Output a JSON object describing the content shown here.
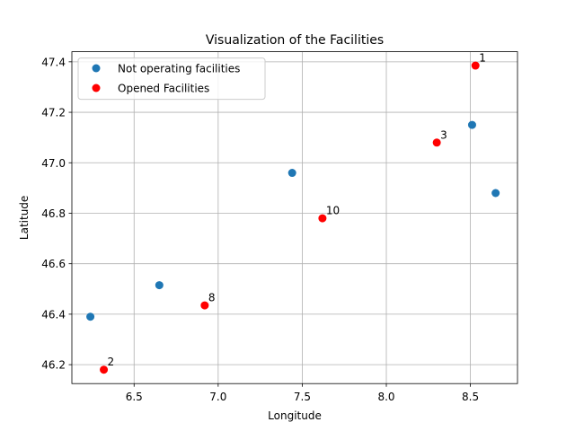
{
  "chart_data": {
    "type": "scatter",
    "title": "Visualization of the Facilities",
    "xlabel": "Longitude",
    "ylabel": "Latitude",
    "xlim": [
      6.13,
      8.78
    ],
    "ylim": [
      46.125,
      47.44
    ],
    "xticks": [
      6.5,
      7.0,
      7.5,
      8.0,
      8.5
    ],
    "xtick_labels": [
      "6.5",
      "7.0",
      "7.5",
      "8.0",
      "8.5"
    ],
    "yticks": [
      46.2,
      46.4,
      46.6,
      46.8,
      47.0,
      47.2,
      47.4
    ],
    "ytick_labels": [
      "46.2",
      "46.4",
      "46.6",
      "46.8",
      "47.0",
      "47.2",
      "47.4"
    ],
    "grid": true,
    "legend_position": "upper-left",
    "series": [
      {
        "name": "Not operating facilities",
        "color": "#1f77b4",
        "points": [
          {
            "x": 6.24,
            "y": 46.39
          },
          {
            "x": 6.65,
            "y": 46.515
          },
          {
            "x": 7.44,
            "y": 46.96
          },
          {
            "x": 8.51,
            "y": 47.15
          },
          {
            "x": 8.65,
            "y": 46.88
          }
        ]
      },
      {
        "name": "Opened Facilities",
        "color": "#ff0000",
        "points": [
          {
            "x": 8.53,
            "y": 47.385,
            "label": "1"
          },
          {
            "x": 8.3,
            "y": 47.08,
            "label": "3"
          },
          {
            "x": 7.62,
            "y": 46.78,
            "label": "10"
          },
          {
            "x": 6.92,
            "y": 46.435,
            "label": "8"
          },
          {
            "x": 6.32,
            "y": 46.18,
            "label": "2"
          }
        ]
      }
    ]
  }
}
